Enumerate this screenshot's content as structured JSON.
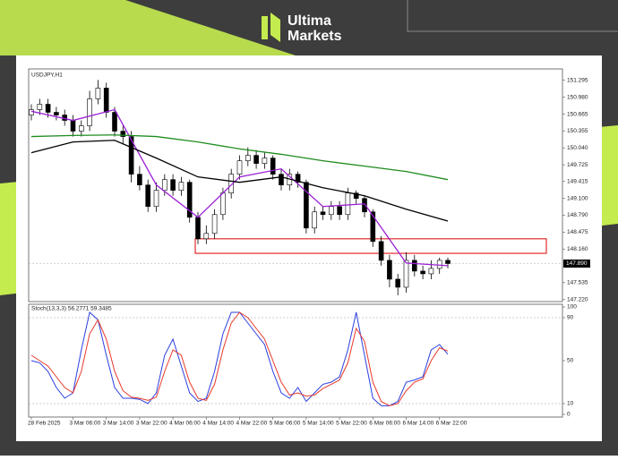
{
  "brand": {
    "line1": "Ultima",
    "line2": "Markets"
  },
  "chart_data": [
    {
      "type": "candlestick",
      "title": "USDJPY,H1",
      "categories": [
        "28 Feb 2025",
        null,
        null,
        null,
        null,
        "3 Mar 06:00",
        null,
        null,
        null,
        "3 Mar 14:00",
        null,
        null,
        null,
        "3 Mar 22:00",
        null,
        null,
        null,
        "4 Mar 06:00",
        null,
        null,
        null,
        "4 Mar 14:00",
        null,
        null,
        null,
        "4 Mar 22:00",
        null,
        null,
        null,
        "5 Mar 06:00",
        null,
        null,
        null,
        "5 Mar 14:00",
        null,
        null,
        null,
        "5 Mar 22:00",
        null,
        null,
        null,
        "6 Mar 06:00",
        null,
        null,
        null,
        "6 Mar 14:00",
        null,
        null,
        null,
        "6 Mar 22:00",
        null
      ],
      "open": [
        150.65,
        150.75,
        150.85,
        150.7,
        150.65,
        150.55,
        150.35,
        150.45,
        150.95,
        151.15,
        150.7,
        150.35,
        150.25,
        149.55,
        149.35,
        148.95,
        149.25,
        149.45,
        149.25,
        149.4,
        148.75,
        148.35,
        148.45,
        148.8,
        149.2,
        149.55,
        149.8,
        149.9,
        149.75,
        149.85,
        149.55,
        149.35,
        149.55,
        149.4,
        148.55,
        148.85,
        148.8,
        148.95,
        148.8,
        149.2,
        149.1,
        148.85,
        148.3,
        147.95,
        147.6,
        147.45,
        147.95,
        147.75,
        147.7,
        147.8,
        147.95
      ],
      "high": [
        150.85,
        150.95,
        150.95,
        150.8,
        150.75,
        150.65,
        150.55,
        151.1,
        151.3,
        151.25,
        150.8,
        150.45,
        150.35,
        149.7,
        149.45,
        149.4,
        149.55,
        149.55,
        149.5,
        149.45,
        148.85,
        148.6,
        148.9,
        149.3,
        149.65,
        149.9,
        150.05,
        150.0,
        149.95,
        149.9,
        149.65,
        149.65,
        149.6,
        149.45,
        148.95,
        148.95,
        149.05,
        149.05,
        149.3,
        149.25,
        149.15,
        148.9,
        148.4,
        148.05,
        147.7,
        148.1,
        148.05,
        147.85,
        147.95,
        148.0,
        148.0
      ],
      "low": [
        150.55,
        150.65,
        150.6,
        150.55,
        150.45,
        150.25,
        150.25,
        150.35,
        150.85,
        150.6,
        150.25,
        150.1,
        149.4,
        149.25,
        148.85,
        148.85,
        149.15,
        149.15,
        149.15,
        148.65,
        148.25,
        148.25,
        148.35,
        148.7,
        149.1,
        149.45,
        149.7,
        149.65,
        149.65,
        149.45,
        149.25,
        149.25,
        149.3,
        148.45,
        148.45,
        148.7,
        148.7,
        148.7,
        148.7,
        149.0,
        148.75,
        148.2,
        147.85,
        147.45,
        147.3,
        147.35,
        147.65,
        147.6,
        147.6,
        147.7,
        147.8
      ],
      "close": [
        150.75,
        150.85,
        150.7,
        150.65,
        150.55,
        150.35,
        150.45,
        150.95,
        151.15,
        150.7,
        150.35,
        150.25,
        149.55,
        149.35,
        148.95,
        149.25,
        149.45,
        149.25,
        149.4,
        148.75,
        148.35,
        148.45,
        148.8,
        149.2,
        149.55,
        149.8,
        149.9,
        149.75,
        149.85,
        149.55,
        149.35,
        149.55,
        149.4,
        148.55,
        148.85,
        148.8,
        148.95,
        148.8,
        149.2,
        149.1,
        148.85,
        148.3,
        147.95,
        147.6,
        147.45,
        147.95,
        147.75,
        147.7,
        147.8,
        147.95,
        147.89
      ],
      "up_color": "#ffffff",
      "down_color": "#000000",
      "lines": [
        {
          "color": "#9b1fd6",
          "x": [
            0,
            5,
            10,
            15,
            20,
            25,
            30,
            35,
            40,
            45,
            50
          ],
          "values": [
            150.72,
            150.55,
            150.75,
            149.35,
            148.75,
            149.5,
            149.65,
            148.95,
            149.0,
            147.9,
            147.85
          ]
        },
        {
          "color": "#000000",
          "x": [
            0,
            5,
            10,
            15,
            20,
            25,
            30,
            35,
            40,
            45,
            50
          ],
          "values": [
            149.95,
            150.15,
            150.18,
            149.85,
            149.5,
            149.4,
            149.5,
            149.3,
            149.15,
            148.9,
            148.68
          ]
        },
        {
          "color": "#1e8c1e",
          "x": [
            0,
            5,
            10,
            15,
            20,
            25,
            30,
            35,
            40,
            45,
            50
          ],
          "values": [
            150.25,
            150.27,
            150.28,
            150.25,
            150.15,
            150.02,
            149.92,
            149.8,
            149.7,
            149.6,
            149.45
          ]
        }
      ],
      "zone": {
        "from": 148.08,
        "to": 148.35,
        "color": "#e00000"
      },
      "last_price": {
        "value": 147.89,
        "label": "147.890"
      },
      "ylim": [
        147.2,
        151.49
      ],
      "yticks": [
        151.295,
        {
          "value": 150.98,
          "label": "150.980"
        },
        150.665,
        150.355,
        {
          "value": 150.04,
          "label": "150.040"
        },
        149.725,
        149.415,
        {
          "value": 149.1,
          "label": "149.100"
        },
        {
          "value": 148.79,
          "label": "148.790"
        },
        148.475,
        {
          "value": 148.16,
          "label": "148.160"
        },
        147.535,
        {
          "value": 147.22,
          "label": "147.220"
        }
      ]
    },
    {
      "type": "line",
      "title": "Stoch(13,3,3) 56.2771 59.3485",
      "series": [
        {
          "color": "#2b3fe0",
          "values": [
            50,
            48,
            40,
            25,
            15,
            20,
            60,
            95,
            88,
            55,
            25,
            15,
            15,
            14,
            10,
            20,
            55,
            70,
            45,
            20,
            12,
            15,
            40,
            75,
            95,
            95,
            85,
            75,
            65,
            40,
            20,
            15,
            25,
            12,
            20,
            28,
            30,
            35,
            60,
            95,
            55,
            15,
            8,
            8,
            12,
            30,
            32,
            35,
            60,
            65,
            56
          ]
        },
        {
          "color": "#e8392a",
          "values": [
            55,
            50,
            45,
            35,
            25,
            20,
            40,
            75,
            88,
            70,
            40,
            22,
            16,
            15,
            13,
            16,
            40,
            60,
            55,
            30,
            15,
            13,
            28,
            60,
            85,
            95,
            90,
            80,
            70,
            50,
            30,
            18,
            20,
            17,
            18,
            24,
            28,
            32,
            48,
            80,
            68,
            30,
            12,
            8,
            10,
            22,
            30,
            33,
            50,
            62,
            59
          ]
        }
      ],
      "levels": [
        90,
        10
      ],
      "ylim": [
        0,
        100
      ],
      "yticks": [
        100,
        90,
        50,
        10,
        0
      ]
    }
  ]
}
